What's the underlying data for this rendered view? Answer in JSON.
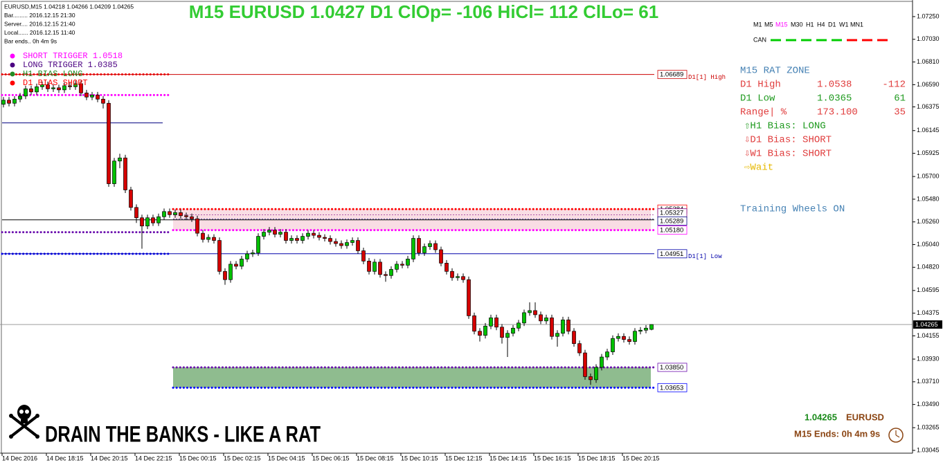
{
  "info": [
    "EURUSD,M15  1.04218 1.04266 1.04209 1.04265",
    "Bar......... 2016.12.15 21:30",
    "Server.... 2016.12.15 21:40",
    "Local...... 2016.12.15 11:40",
    "Bar ends.. 0h 4m 9s"
  ],
  "chart_data": {
    "type": "candlestick",
    "title": "M15 EURUSD 1.0427 D1 ClOp= -106 HiCl= 112 ClLo= 61",
    "categories": [
      "14 Dec 2016",
      null,
      null,
      null,
      null,
      null,
      null,
      null,
      "14 Dec 18:15",
      null,
      null,
      null,
      null,
      null,
      null,
      null,
      "14 Dec 20:15",
      null,
      null,
      null,
      null,
      null,
      null,
      null,
      "14 Dec 22:15",
      null,
      null,
      null,
      null,
      null,
      null,
      null,
      "15 Dec 00:15",
      null,
      null,
      null,
      null,
      null,
      null,
      null,
      "15 Dec 02:15",
      null,
      null,
      null,
      null,
      null,
      null,
      null,
      "15 Dec 04:15",
      null,
      null,
      null,
      null,
      null,
      null,
      null,
      "15 Dec 06:15",
      null,
      null,
      null,
      null,
      null,
      null,
      null,
      "15 Dec 08:15",
      null,
      null,
      null,
      null,
      null,
      null,
      null,
      "15 Dec 10:15",
      null,
      null,
      null,
      null,
      null,
      null,
      null,
      "15 Dec 12:15",
      null,
      null,
      null,
      null,
      null,
      null,
      null,
      "15 Dec 14:15",
      null,
      null,
      null,
      null,
      null,
      null,
      null,
      "15 Dec 16:15",
      null,
      null,
      null,
      null,
      null,
      null,
      null,
      "15 Dec 18:15",
      null,
      null,
      null,
      null,
      null,
      null,
      null,
      "15 Dec 20:15",
      null,
      null,
      null,
      null,
      null
    ],
    "open": [
      1.064,
      1.0644,
      1.0641,
      1.0645,
      1.0648,
      1.0655,
      1.0652,
      1.0657,
      1.0659,
      1.0655,
      1.0656,
      1.0654,
      1.0658,
      1.0657,
      1.066,
      1.0651,
      1.0647,
      1.0649,
      1.0645,
      1.0641,
      1.0563,
      1.0585,
      1.0588,
      1.0557,
      1.054,
      1.053,
      1.0522,
      1.053,
      1.0525,
      1.0531,
      1.0536,
      1.0533,
      1.0535,
      1.0532,
      1.0531,
      1.0529,
      1.0515,
      1.0509,
      1.0511,
      1.0508,
      1.0478,
      1.047,
      1.0485,
      1.0483,
      1.049,
      1.0495,
      1.0496,
      1.0512,
      1.0516,
      1.0518,
      1.0514,
      1.0516,
      1.0508,
      1.051,
      1.0508,
      1.0512,
      1.0515,
      1.0513,
      1.0511,
      1.051,
      1.0507,
      1.0505,
      1.0503,
      1.0506,
      1.0508,
      1.0498,
      1.0488,
      1.0478,
      1.0487,
      1.0475,
      1.0474,
      1.048,
      1.0485,
      1.0484,
      1.049,
      1.051,
      1.0496,
      1.0502,
      1.0505,
      1.0499,
      1.0486,
      1.0478,
      1.0472,
      1.0473,
      1.047,
      1.0435,
      1.042,
      1.0416,
      1.0425,
      1.0433,
      1.0424,
      1.0414,
      1.0418,
      1.0423,
      1.0428,
      1.0438,
      1.044,
      1.0436,
      1.043,
      1.0433,
      1.0415,
      1.0418,
      1.0431,
      1.042,
      1.0408,
      1.0399,
      1.0376,
      1.0373,
      1.0385,
      1.0395,
      1.04,
      1.0413,
      1.0415,
      1.0412,
      1.041,
      1.042,
      1.0421,
      1.04218
    ],
    "high": [
      1.0647,
      1.0647,
      1.0648,
      1.0651,
      1.0658,
      1.0658,
      1.066,
      1.0662,
      1.0662,
      1.0659,
      1.0659,
      1.0661,
      1.0661,
      1.0663,
      1.0663,
      1.0654,
      1.0652,
      1.0652,
      1.0648,
      1.0644,
      1.0588,
      1.0592,
      1.0591,
      1.056,
      1.0543,
      1.0533,
      1.0533,
      1.0533,
      1.0534,
      1.0539,
      1.0539,
      1.0538,
      1.0538,
      1.0535,
      1.0534,
      1.0532,
      1.0518,
      1.0514,
      1.0514,
      1.0511,
      1.0481,
      1.0488,
      1.0488,
      1.0493,
      1.0498,
      1.0499,
      1.0515,
      1.0519,
      1.0521,
      1.0521,
      1.0519,
      1.0519,
      1.0513,
      1.0513,
      1.0515,
      1.0518,
      1.0518,
      1.0516,
      1.0514,
      1.0513,
      1.051,
      1.0508,
      1.0509,
      1.0511,
      1.0511,
      1.0501,
      1.0491,
      1.049,
      1.049,
      1.0478,
      1.0483,
      1.0488,
      1.0488,
      1.0493,
      1.0513,
      1.0513,
      1.0505,
      1.0508,
      1.0508,
      1.0502,
      1.0489,
      1.0481,
      1.0476,
      1.0476,
      1.0473,
      1.0438,
      1.0423,
      1.0428,
      1.0436,
      1.0436,
      1.0427,
      1.0421,
      1.0426,
      1.0431,
      1.0441,
      1.0448,
      1.0448,
      1.0439,
      1.0436,
      1.0436,
      1.0421,
      1.0434,
      1.0434,
      1.0423,
      1.0411,
      1.0402,
      1.0379,
      1.0388,
      1.0398,
      1.0403,
      1.0416,
      1.0418,
      1.0418,
      1.0415,
      1.0423,
      1.0424,
      1.0426,
      1.04266
    ],
    "low": [
      1.0637,
      1.0638,
      1.0638,
      1.0642,
      1.0645,
      1.0649,
      1.0649,
      1.0654,
      1.0652,
      1.0652,
      1.0651,
      1.0651,
      1.0654,
      1.0654,
      1.0648,
      1.0644,
      1.0644,
      1.0642,
      1.0636,
      1.056,
      1.056,
      1.0578,
      1.0554,
      1.0537,
      1.0525,
      1.05,
      1.0519,
      1.0522,
      1.0522,
      1.0528,
      1.053,
      1.053,
      1.0529,
      1.0528,
      1.0526,
      1.0512,
      1.0506,
      1.0506,
      1.0505,
      1.0475,
      1.0465,
      1.0467,
      1.048,
      1.048,
      1.0487,
      1.0492,
      1.0493,
      1.0509,
      1.0513,
      1.0511,
      1.0511,
      1.0505,
      1.0505,
      1.0505,
      1.0505,
      1.0509,
      1.051,
      1.0508,
      1.0507,
      1.0504,
      1.0502,
      1.05,
      1.05,
      1.0503,
      1.0495,
      1.0485,
      1.0475,
      1.0475,
      1.0472,
      1.0468,
      1.0471,
      1.0477,
      1.0481,
      1.0481,
      1.0487,
      1.0493,
      1.0493,
      1.0499,
      1.0496,
      1.0483,
      1.0475,
      1.0469,
      1.0469,
      1.0467,
      1.0432,
      1.0417,
      1.041,
      1.0413,
      1.0422,
      1.0421,
      1.0408,
      1.0395,
      1.0415,
      1.042,
      1.0425,
      1.0435,
      1.0433,
      1.0427,
      1.0427,
      1.0412,
      1.0405,
      1.0415,
      1.0417,
      1.0405,
      1.0396,
      1.0373,
      1.0368,
      1.037,
      1.0382,
      1.0392,
      1.0397,
      1.041,
      1.0409,
      1.0407,
      1.0407,
      1.0417,
      1.0418,
      1.04209
    ],
    "close": [
      1.0644,
      1.0641,
      1.0645,
      1.0648,
      1.0655,
      1.0652,
      1.0657,
      1.0659,
      1.0655,
      1.0656,
      1.0654,
      1.0658,
      1.0657,
      1.066,
      1.0651,
      1.0647,
      1.0649,
      1.0645,
      1.0641,
      1.0563,
      1.0585,
      1.0588,
      1.0557,
      1.054,
      1.053,
      1.0522,
      1.053,
      1.0525,
      1.0531,
      1.0536,
      1.0533,
      1.0535,
      1.0532,
      1.0531,
      1.0529,
      1.0515,
      1.0509,
      1.0511,
      1.0508,
      1.0478,
      1.047,
      1.0485,
      1.0483,
      1.049,
      1.0495,
      1.0496,
      1.0512,
      1.0516,
      1.0518,
      1.0514,
      1.0516,
      1.0508,
      1.051,
      1.0508,
      1.0512,
      1.0515,
      1.0513,
      1.0511,
      1.051,
      1.0507,
      1.0505,
      1.0503,
      1.0506,
      1.0508,
      1.0498,
      1.0488,
      1.0478,
      1.0487,
      1.0475,
      1.0474,
      1.048,
      1.0485,
      1.0484,
      1.049,
      1.051,
      1.0496,
      1.0502,
      1.0505,
      1.0499,
      1.0486,
      1.0478,
      1.0472,
      1.0473,
      1.047,
      1.0435,
      1.042,
      1.0416,
      1.0425,
      1.0433,
      1.0424,
      1.0414,
      1.0418,
      1.0423,
      1.0428,
      1.0438,
      1.044,
      1.0436,
      1.043,
      1.0433,
      1.0415,
      1.0418,
      1.0431,
      1.042,
      1.0408,
      1.0399,
      1.0376,
      1.0373,
      1.0385,
      1.0395,
      1.04,
      1.0413,
      1.0415,
      1.0412,
      1.041,
      1.042,
      1.0421,
      1.0423,
      1.04265
    ],
    "up_color": "#00c000",
    "down_color": "#d40000",
    "ylim": [
      1.03018,
      1.07411
    ],
    "yticks": [
      {
        "value": 1.0725,
        "label": "1.07250"
      },
      {
        "value": 1.0703,
        "label": "1.07030"
      },
      {
        "value": 1.0681,
        "label": "1.06810"
      },
      {
        "value": 1.0659,
        "label": "1.06590"
      },
      1.06375,
      1.06145,
      {
        "value": 1.05925,
        "label": "1.05925"
      },
      {
        "value": 1.057,
        "label": "1.05700"
      },
      {
        "value": 1.0548,
        "label": "1.05480"
      },
      {
        "value": 1.0526,
        "label": "1.05260"
      },
      {
        "value": 1.0504,
        "label": "1.05040"
      },
      {
        "value": 1.0482,
        "label": "1.04820"
      },
      1.04595,
      1.04375,
      1.04155,
      {
        "value": 1.0393,
        "label": "1.03930"
      },
      {
        "value": 1.0371,
        "label": "1.03710"
      },
      {
        "value": 1.0349,
        "label": "1.03490"
      },
      1.03265,
      1.03045
    ],
    "current_price": 1.04265,
    "zones": [
      {
        "low": 1.0518,
        "high": 1.05384,
        "color": "#f9dde4"
      },
      {
        "low": 1.03653,
        "high": 1.0385,
        "color": "#8fbc8f"
      }
    ],
    "levels": [
      {
        "value": 1.06689,
        "color": "#cc0000",
        "style": "solid",
        "note": "D1[1] High"
      },
      {
        "value": 1.05384,
        "color": "#ff0000",
        "style": "dots"
      },
      {
        "value": 1.05327,
        "color": "#800080",
        "style": "thin"
      },
      {
        "value": 1.05289,
        "color": "#000080",
        "style": "thin"
      },
      {
        "value": {
          "value": 1.0518,
          "label": "1.05180"
        },
        "color": "#ff00ff",
        "style": "dots"
      },
      {
        "value": 1.04951,
        "color": "#0000aa",
        "style": "solid",
        "note": "D1[1] Low"
      },
      {
        "value": {
          "value": 1.0385,
          "label": "1.03850"
        },
        "color": "#6a0dad",
        "style": "dots"
      },
      {
        "value": 1.03653,
        "color": "#0000ff",
        "style": "dots"
      }
    ],
    "prior_levels": [
      {
        "value": 1.0669,
        "color": "#ff0000",
        "style": "dots"
      },
      {
        "value": 1.0649,
        "color": "#ff00ff",
        "style": "dots"
      },
      {
        "value": 1.0622,
        "color": "#000080",
        "style": "solid"
      },
      {
        "value": 1.0528,
        "color": "#000000",
        "style": "solid"
      },
      {
        "value": 1.0516,
        "color": "#6a0dad",
        "style": "dots"
      },
      {
        "value": 1.0495,
        "color": "#0000ff",
        "style": "dots"
      }
    ]
  },
  "legend": [
    {
      "text": "SHORT TRIGGER 1.0518",
      "color": "#ff00ff"
    },
    {
      "text": "LONG TRIGGER  1.0385",
      "color": "#4b0082"
    },
    {
      "text": "H1 BIAS LONG",
      "color": "#228b22"
    },
    {
      "text": "D1 BIAS SHORT",
      "color": "#ff0000"
    }
  ],
  "timeframes": {
    "items": [
      "M1",
      "M5",
      "M15",
      "M30",
      "H1",
      "H4",
      "D1",
      "W1",
      "MN1"
    ],
    "active": 2,
    "label": "CAN",
    "bias_colors": [
      "#00cc00",
      "#00cc00",
      "#00cc00",
      "#00cc00",
      "#00cc00",
      "#ff0000",
      "#ff0000",
      "#ff0000"
    ]
  },
  "panel": {
    "title": "M15 RAT ZONE",
    "rows": [
      [
        "D1 High",
        "1.0538",
        "-112"
      ],
      [
        "D1 Low",
        "1.0365",
        "61"
      ],
      [
        "Range| %",
        "173.100",
        "35"
      ]
    ],
    "biases": [
      "⇧H1 Bias: LONG",
      "⇩D1 Bias: SHORT",
      "⇩W1 Bias: SHORT",
      "⇨Wait"
    ],
    "status": "Training Wheels ON"
  },
  "footer": {
    "price": "1.04265",
    "symbol": "EURUSD",
    "ends": "M15 Ends: 0h 4m 9s",
    "slogan": "DRAIN THE BANKS - LIKE A RAT"
  }
}
